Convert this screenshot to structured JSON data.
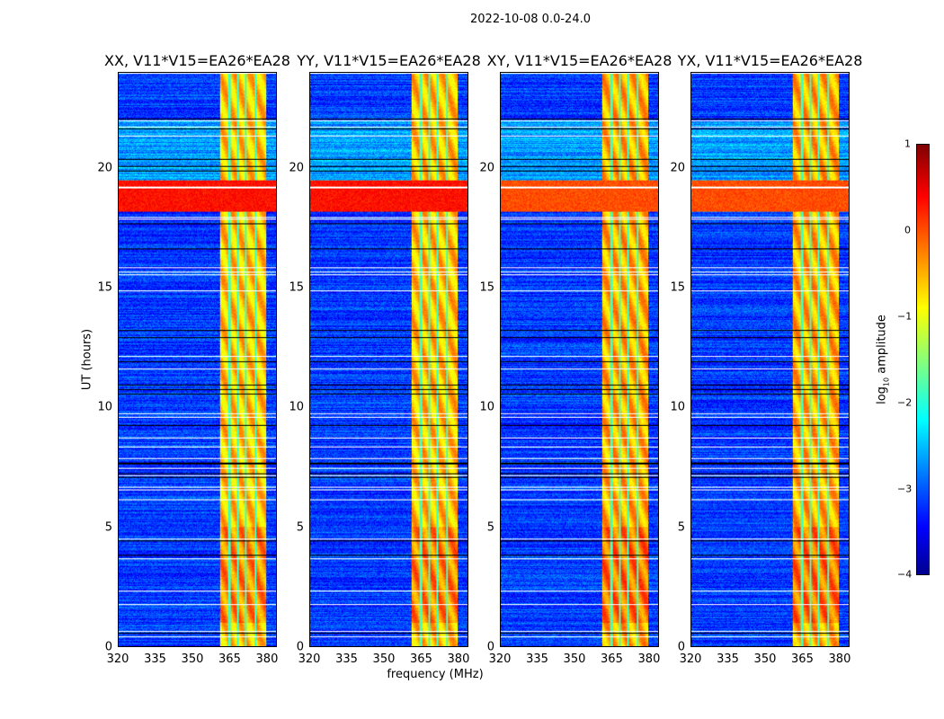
{
  "chart_data": {
    "type": "heatmap",
    "title": "2022-10-08 0.0-24.0",
    "xlabel": "frequency (MHz)",
    "ylabel": "UT (hours)",
    "xlim": [
      320,
      384
    ],
    "ylim": [
      0,
      24
    ],
    "xticks": [
      "320",
      "335",
      "350",
      "365",
      "380"
    ],
    "yticks": [
      "0",
      "5",
      "10",
      "15",
      "20"
    ],
    "panels": [
      {
        "title": "XX, V11*V15=EA26*EA28",
        "rfi_strength": 1.0
      },
      {
        "title": "YY, V11*V15=EA26*EA28",
        "rfi_strength": 0.95
      },
      {
        "title": "XY, V11*V15=EA26*EA28",
        "rfi_strength": 0.8
      },
      {
        "title": "YX, V11*V15=EA26*EA28",
        "rfi_strength": 0.8
      }
    ],
    "features": {
      "background_log_amplitude": -3.1,
      "rfi_band_mhz": [
        361,
        380
      ],
      "rfi_log_amplitude": -0.6,
      "bright_interval_hours": [
        18.2,
        19.5
      ],
      "bright_log_amplitude": 0.3
    },
    "colorbar": {
      "label": "log10 amplitude",
      "label_main": "log",
      "label_sub": "10",
      "label_rest": " amplitude",
      "range": [
        -4,
        1
      ],
      "ticks": [
        "1",
        "0",
        "−1",
        "−2",
        "−3",
        "−4"
      ],
      "colormap": "jet"
    }
  }
}
